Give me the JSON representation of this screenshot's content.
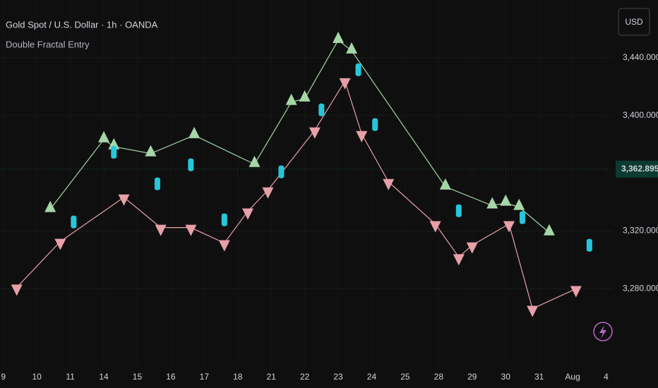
{
  "chart_data": {
    "type": "scatter",
    "title": "Gold Spot / U.S. Dollar · 1h · OANDA",
    "subtitle": "Double Fractal Entry",
    "currency": "USD",
    "last_price": 3362.895,
    "last_price_label": "3,362.895",
    "xlim": [
      -0.1,
      18.2
    ],
    "xticks": [
      {
        "value": 0,
        "label": "9"
      },
      {
        "value": 1,
        "label": "10"
      },
      {
        "value": 2,
        "label": "11"
      },
      {
        "value": 3,
        "label": "14"
      },
      {
        "value": 4,
        "label": "15"
      },
      {
        "value": 5,
        "label": "16"
      },
      {
        "value": 6,
        "label": "17"
      },
      {
        "value": 7,
        "label": "18"
      },
      {
        "value": 8,
        "label": "21"
      },
      {
        "value": 9,
        "label": "22"
      },
      {
        "value": 10,
        "label": "23"
      },
      {
        "value": 11,
        "label": "24"
      },
      {
        "value": 12,
        "label": "25"
      },
      {
        "value": 13,
        "label": "28"
      },
      {
        "value": 14,
        "label": "29"
      },
      {
        "value": 15,
        "label": "30"
      },
      {
        "value": 16,
        "label": "31"
      },
      {
        "value": 17,
        "label": "Aug"
      },
      {
        "value": 18,
        "label": "4"
      }
    ],
    "ylim": [
      3226,
      3480
    ],
    "yticks": [
      {
        "value": 3280,
        "label": "3,280.000"
      },
      {
        "value": 3320,
        "label": "3,320.000"
      },
      {
        "value": 3400,
        "label": "3,400.000"
      },
      {
        "value": 3440,
        "label": "3,440.000"
      }
    ],
    "series": [
      {
        "color": "#a5d6a7",
        "marker": "triangle-up",
        "line": true,
        "x": [
          1.4,
          3.0,
          3.3,
          4.4,
          5.7,
          7.5,
          8.6,
          9.0,
          10.0,
          10.4,
          13.2,
          14.6,
          15.0,
          15.4,
          16.3
        ],
        "values": [
          3335.1,
          3383.4,
          3378.5,
          3373.7,
          3386.3,
          3366.3,
          3409.3,
          3411.7,
          3452.2,
          3444.9,
          3350.7,
          3337.6,
          3339.5,
          3336.6,
          3319.0
        ]
      },
      {
        "color": "#e8a0a8",
        "marker": "triangle-down",
        "line": true,
        "x": [
          0.4,
          1.7,
          3.6,
          4.7,
          5.6,
          6.6,
          7.3,
          7.9,
          9.3,
          10.2,
          10.7,
          11.5,
          12.9,
          13.6,
          14.0,
          15.1,
          15.8,
          17.1
        ],
        "values": [
          3281.0,
          3312.7,
          3343.4,
          3322.4,
          3322.4,
          3311.7,
          3333.7,
          3348.3,
          3389.8,
          3423.9,
          3387.3,
          3354.1,
          3324.9,
          3302.0,
          3310.2,
          3324.9,
          3266.3,
          3280.0
        ]
      },
      {
        "color": "#26c6da",
        "marker": "rect",
        "line": false,
        "x": [
          2.1,
          3.3,
          4.6,
          5.6,
          6.6,
          8.3,
          9.5,
          10.6,
          11.1,
          13.6,
          15.5,
          17.5
        ],
        "values": [
          3326.3,
          3374.6,
          3352.7,
          3365.9,
          3327.8,
          3361.0,
          3403.9,
          3431.7,
          3393.7,
          3334.1,
          3329.3,
          3310.2
        ]
      }
    ]
  }
}
